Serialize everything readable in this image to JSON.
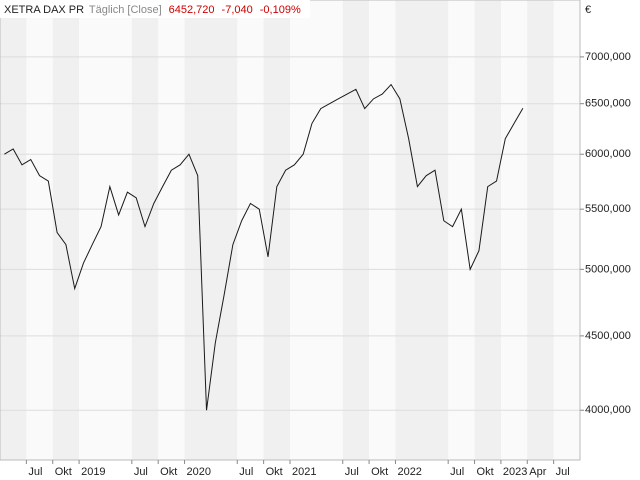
{
  "chart_data": {
    "type": "line",
    "title": "XETRA DAX PR",
    "subtitle": "Täglich [Close]",
    "last_value": "6452,720",
    "change": "-7,040",
    "change_pct": "-0,109%",
    "currency": "€",
    "log_scale": true,
    "grid": true,
    "x": [
      "2018-04",
      "2018-05",
      "2018-06",
      "2018-07",
      "2018-08",
      "2018-09",
      "2018-10",
      "2018-11",
      "2018-12",
      "2019-01",
      "2019-02",
      "2019-03",
      "2019-04",
      "2019-05",
      "2019-06",
      "2019-07",
      "2019-08",
      "2019-09",
      "2019-10",
      "2019-11",
      "2019-12",
      "2020-01",
      "2020-02",
      "2020-03",
      "2020-04",
      "2020-05",
      "2020-06",
      "2020-07",
      "2020-08",
      "2020-09",
      "2020-10",
      "2020-11",
      "2020-12",
      "2021-01",
      "2021-02",
      "2021-03",
      "2021-04",
      "2021-05",
      "2021-06",
      "2021-07",
      "2021-08",
      "2021-09",
      "2021-10",
      "2021-11",
      "2021-12",
      "2022-01",
      "2022-02",
      "2022-03",
      "2022-04",
      "2022-05",
      "2022-06",
      "2022-07",
      "2022-08",
      "2022-09",
      "2022-10",
      "2022-11",
      "2022-12",
      "2023-01",
      "2023-02",
      "2023-03"
    ],
    "series": [
      {
        "name": "XETRA DAX PR",
        "color": "#1a1a1a",
        "values": [
          6000,
          6050,
          5900,
          5950,
          5800,
          5750,
          5300,
          5200,
          4850,
          5050,
          5200,
          5350,
          5700,
          5450,
          5650,
          5600,
          5350,
          5550,
          5700,
          5850,
          5900,
          6000,
          5800,
          4000,
          4450,
          4800,
          5200,
          5400,
          5550,
          5500,
          5100,
          5700,
          5850,
          5900,
          6000,
          6300,
          6450,
          6500,
          6550,
          6600,
          6650,
          6450,
          6550,
          6600,
          6700,
          6550,
          6150,
          5700,
          5800,
          5850,
          5400,
          5350,
          5500,
          5000,
          5150,
          5700,
          5750,
          6150,
          6300,
          6452.72
        ]
      }
    ],
    "xlim": [
      "2018-04",
      "2023-10"
    ],
    "xticks": [
      {
        "value": "2018-07",
        "label": "Jul"
      },
      {
        "value": "2018-10",
        "label": "Okt"
      },
      {
        "value": "2019-01",
        "label": "2019"
      },
      {
        "value": "2019-07",
        "label": "Jul"
      },
      {
        "value": "2019-10",
        "label": "Okt"
      },
      {
        "value": "2020-01",
        "label": "2020"
      },
      {
        "value": "2020-07",
        "label": "Jul"
      },
      {
        "value": "2020-10",
        "label": "Okt"
      },
      {
        "value": "2021-01",
        "label": "2021"
      },
      {
        "value": "2021-07",
        "label": "Jul"
      },
      {
        "value": "2021-10",
        "label": "Okt"
      },
      {
        "value": "2022-01",
        "label": "2022"
      },
      {
        "value": "2022-07",
        "label": "Jul"
      },
      {
        "value": "2022-10",
        "label": "Okt"
      },
      {
        "value": "2023-01",
        "label": "2023"
      },
      {
        "value": "2023-04",
        "label": "Apr"
      },
      {
        "value": "2023-07",
        "label": "Jul"
      }
    ],
    "ylim": [
      3697,
      7660
    ],
    "yticks": [
      {
        "value": 4000,
        "label": "4000,000"
      },
      {
        "value": 4500,
        "label": "4500,000"
      },
      {
        "value": 5000,
        "label": "5000,000"
      },
      {
        "value": 5500,
        "label": "5500,000"
      },
      {
        "value": 6000,
        "label": "6000,000"
      },
      {
        "value": 6500,
        "label": "6500,000"
      },
      {
        "value": 7000,
        "label": "7000,000"
      }
    ]
  }
}
